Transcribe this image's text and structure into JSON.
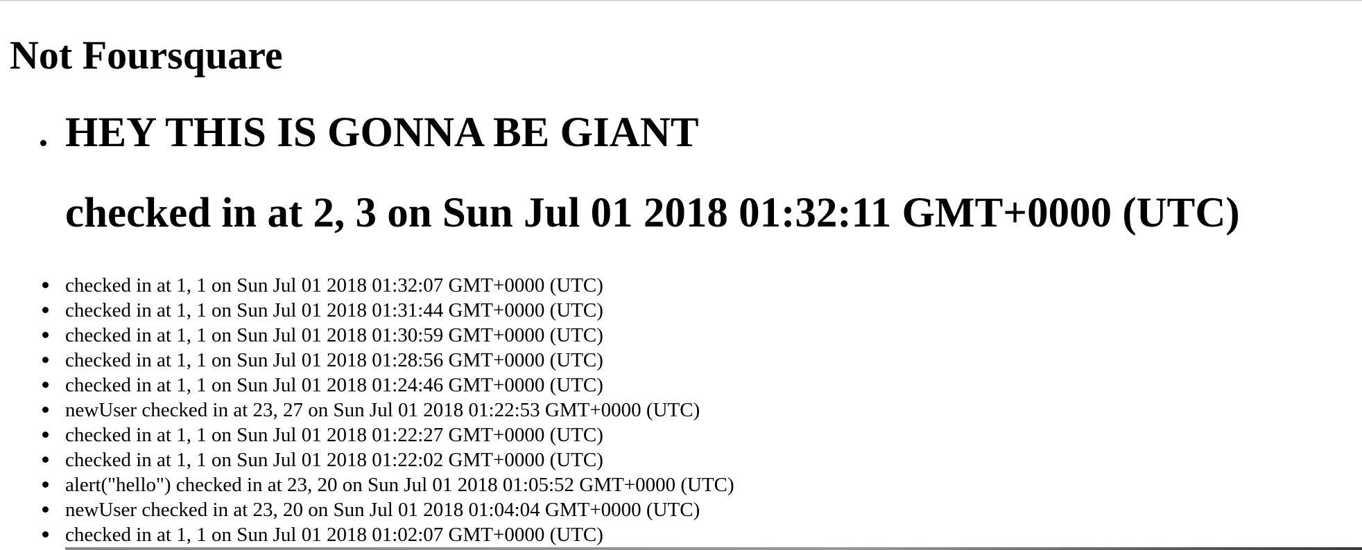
{
  "page": {
    "title": "Not Foursquare"
  },
  "featured": {
    "heading": "HEY THIS IS GONNA BE GIANT",
    "checkin": "checked in at 2, 3 on Sun Jul 01 2018 01:32:11 GMT+0000 (UTC)"
  },
  "checkins": [
    "checked in at 1, 1 on Sun Jul 01 2018 01:32:07 GMT+0000 (UTC)",
    "checked in at 1, 1 on Sun Jul 01 2018 01:31:44 GMT+0000 (UTC)",
    "checked in at 1, 1 on Sun Jul 01 2018 01:30:59 GMT+0000 (UTC)",
    "checked in at 1, 1 on Sun Jul 01 2018 01:28:56 GMT+0000 (UTC)",
    "checked in at 1, 1 on Sun Jul 01 2018 01:24:46 GMT+0000 (UTC)",
    "newUser checked in at 23, 27 on Sun Jul 01 2018 01:22:53 GMT+0000 (UTC)",
    "checked in at 1, 1 on Sun Jul 01 2018 01:22:27 GMT+0000 (UTC)",
    "checked in at 1, 1 on Sun Jul 01 2018 01:22:02 GMT+0000 (UTC)",
    "alert(\"hello\") checked in at 23, 20 on Sun Jul 01 2018 01:05:52 GMT+0000 (UTC)",
    "newUser checked in at 23, 20 on Sun Jul 01 2018 01:04:04 GMT+0000 (UTC)",
    "checked in at 1, 1 on Sun Jul 01 2018 01:02:07 GMT+0000 (UTC)"
  ]
}
